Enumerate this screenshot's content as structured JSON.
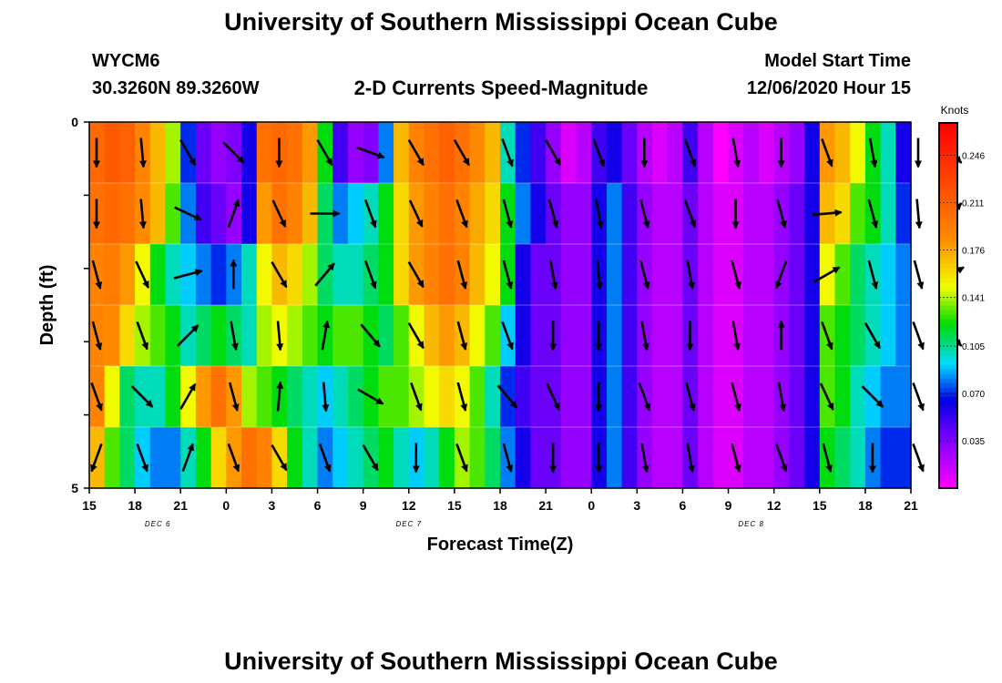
{
  "header": {
    "title_top": "University of Southern Mississippi Ocean Cube",
    "title_bottom": "University of Southern Mississippi Ocean Cube",
    "station_id": "WYCM6",
    "station_coords": "30.3260N 89.3260W",
    "plot_title": "2-D Currents Speed-Magnitude",
    "model_start_label": "Model Start Time",
    "model_start_value": "12/06/2020 Hour 15"
  },
  "chart_data": {
    "type": "heatmap",
    "title": "2-D Currents Speed-Magnitude",
    "xlabel": "Forecast Time(Z)",
    "ylabel": "Depth (ft)",
    "x_ticks": [
      "15",
      "18",
      "21",
      "0",
      "3",
      "6",
      "9",
      "12",
      "15",
      "18",
      "21",
      "0",
      "3",
      "6",
      "9",
      "12",
      "15",
      "18",
      "21"
    ],
    "date_labels": [
      "DEC 6",
      "DEC 7",
      "DEC 8"
    ],
    "y_tick_labels": [
      "0",
      "5"
    ],
    "y_range": [
      0,
      5
    ],
    "colorbar": {
      "title": "Knots",
      "tick_labels": [
        "0.246",
        "0.211",
        "0.176",
        "0.141",
        "0.105",
        "0.070",
        "0.035"
      ],
      "ticks": [
        0.246,
        0.211,
        0.176,
        0.141,
        0.105,
        0.07,
        0.035
      ],
      "range": [
        0.0,
        0.27
      ]
    },
    "layers": 6,
    "hours": 54,
    "speed_knots": [
      [
        0.205,
        0.215,
        0.21,
        0.19,
        0.17,
        0.14,
        0.07,
        0.04,
        0.03,
        0.035,
        0.06,
        0.2,
        0.205,
        0.2,
        0.18,
        0.12,
        0.05,
        0.03,
        0.035,
        0.08,
        0.17,
        0.19,
        0.2,
        0.21,
        0.2,
        0.185,
        0.17,
        0.1,
        0.07,
        0.05,
        0.03,
        0.01,
        0.02,
        0.05,
        0.06,
        0.04,
        0.02,
        0.01,
        0.02,
        0.05,
        0.02,
        0.0,
        0.01,
        0.02,
        0.01,
        0.02,
        0.03,
        0.06,
        0.18,
        0.17,
        0.15,
        0.12,
        0.1,
        0.06
      ],
      [
        0.2,
        0.205,
        0.2,
        0.185,
        0.17,
        0.13,
        0.08,
        0.05,
        0.04,
        0.03,
        0.06,
        0.18,
        0.2,
        0.19,
        0.17,
        0.11,
        0.08,
        0.09,
        0.1,
        0.12,
        0.16,
        0.18,
        0.19,
        0.2,
        0.19,
        0.175,
        0.16,
        0.12,
        0.08,
        0.06,
        0.04,
        0.03,
        0.03,
        0.06,
        0.08,
        0.05,
        0.03,
        0.02,
        0.02,
        0.04,
        0.02,
        0.01,
        0.01,
        0.02,
        0.02,
        0.03,
        0.04,
        0.06,
        0.17,
        0.16,
        0.13,
        0.12,
        0.1,
        0.07
      ],
      [
        0.19,
        0.195,
        0.18,
        0.15,
        0.12,
        0.1,
        0.09,
        0.08,
        0.07,
        0.08,
        0.1,
        0.15,
        0.17,
        0.16,
        0.14,
        0.11,
        0.1,
        0.1,
        0.11,
        0.12,
        0.16,
        0.18,
        0.19,
        0.2,
        0.19,
        0.17,
        0.15,
        0.12,
        0.06,
        0.04,
        0.04,
        0.03,
        0.03,
        0.06,
        0.08,
        0.05,
        0.03,
        0.02,
        0.02,
        0.04,
        0.02,
        0.01,
        0.01,
        0.02,
        0.02,
        0.03,
        0.04,
        0.06,
        0.15,
        0.13,
        0.11,
        0.1,
        0.09,
        0.08
      ],
      [
        0.19,
        0.185,
        0.16,
        0.14,
        0.13,
        0.12,
        0.1,
        0.11,
        0.12,
        0.11,
        0.1,
        0.14,
        0.15,
        0.14,
        0.13,
        0.12,
        0.13,
        0.13,
        0.12,
        0.11,
        0.13,
        0.15,
        0.17,
        0.18,
        0.17,
        0.15,
        0.13,
        0.09,
        0.06,
        0.04,
        0.04,
        0.03,
        0.03,
        0.06,
        0.08,
        0.05,
        0.03,
        0.02,
        0.02,
        0.04,
        0.02,
        0.01,
        0.01,
        0.02,
        0.02,
        0.03,
        0.04,
        0.06,
        0.13,
        0.12,
        0.11,
        0.1,
        0.09,
        0.08
      ],
      [
        0.19,
        0.15,
        0.11,
        0.1,
        0.1,
        0.12,
        0.15,
        0.18,
        0.2,
        0.18,
        0.14,
        0.13,
        0.12,
        0.11,
        0.1,
        0.09,
        0.1,
        0.11,
        0.12,
        0.13,
        0.13,
        0.14,
        0.15,
        0.16,
        0.15,
        0.13,
        0.1,
        0.07,
        0.05,
        0.04,
        0.04,
        0.03,
        0.03,
        0.06,
        0.08,
        0.05,
        0.03,
        0.02,
        0.02,
        0.04,
        0.02,
        0.01,
        0.01,
        0.02,
        0.02,
        0.03,
        0.04,
        0.06,
        0.13,
        0.12,
        0.1,
        0.09,
        0.08,
        0.08
      ],
      [
        0.17,
        0.13,
        0.11,
        0.09,
        0.08,
        0.08,
        0.1,
        0.12,
        0.16,
        0.18,
        0.2,
        0.19,
        0.16,
        0.12,
        0.1,
        0.08,
        0.09,
        0.1,
        0.11,
        0.12,
        0.1,
        0.09,
        0.1,
        0.12,
        0.14,
        0.13,
        0.11,
        0.08,
        0.06,
        0.04,
        0.04,
        0.03,
        0.03,
        0.06,
        0.08,
        0.05,
        0.03,
        0.02,
        0.02,
        0.04,
        0.02,
        0.01,
        0.01,
        0.02,
        0.02,
        0.03,
        0.04,
        0.06,
        0.12,
        0.11,
        0.1,
        0.08,
        0.07,
        0.07
      ]
    ],
    "arrow_directions_deg": [
      [
        180,
        175,
        150,
        135,
        180,
        150,
        110,
        150,
        150,
        160,
        150,
        160,
        180,
        160,
        170,
        180,
        160,
        170,
        180,
        135
      ],
      [
        180,
        175,
        115,
        20,
        155,
        90,
        160,
        155,
        160,
        165,
        165,
        170,
        165,
        160,
        180,
        165,
        85,
        165,
        175,
        45
      ],
      [
        165,
        155,
        75,
        0,
        150,
        40,
        160,
        150,
        165,
        165,
        170,
        175,
        165,
        170,
        165,
        200,
        60,
        165,
        165,
        60
      ],
      [
        165,
        160,
        45,
        170,
        175,
        10,
        140,
        150,
        165,
        160,
        180,
        180,
        170,
        180,
        170,
        0,
        160,
        150,
        160,
        135
      ],
      [
        160,
        135,
        30,
        165,
        5,
        175,
        120,
        160,
        165,
        140,
        155,
        180,
        160,
        165,
        165,
        170,
        155,
        135,
        160,
        170
      ],
      [
        200,
        160,
        20,
        160,
        150,
        160,
        150,
        180,
        160,
        165,
        180,
        180,
        170,
        170,
        165,
        160,
        165,
        180,
        160,
        165
      ]
    ]
  }
}
